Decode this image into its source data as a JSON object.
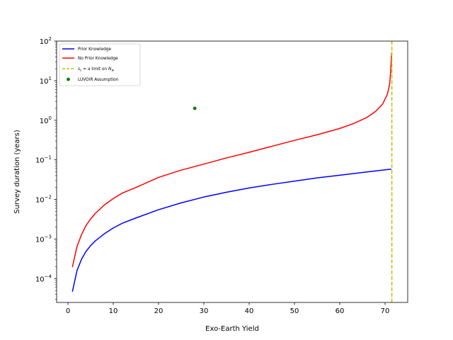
{
  "chart_data": {
    "type": "line",
    "xlabel": "Exo-Earth Yield",
    "ylabel": "Survey duration (years)",
    "xlim": [
      -2.5,
      75
    ],
    "ylim": [
      2.5e-05,
      100
    ],
    "yscale": "log",
    "grid": false,
    "legend_position": "upper-left",
    "x_ticks": [
      0,
      10,
      20,
      30,
      40,
      50,
      60,
      70
    ],
    "y_ticks": [
      0.0001,
      0.001,
      0.01,
      0.1,
      1,
      10,
      100
    ],
    "x_tick_labels": [
      "0",
      "10",
      "20",
      "30",
      "40",
      "50",
      "60",
      "70"
    ],
    "y_tick_labels": [
      {
        "base": "10",
        "exp": "−4"
      },
      {
        "base": "10",
        "exp": "−3"
      },
      {
        "base": "10",
        "exp": "−2"
      },
      {
        "base": "10",
        "exp": "−1"
      },
      {
        "base": "10",
        "exp": "0"
      },
      {
        "base": "10",
        "exp": "1"
      },
      {
        "base": "10",
        "exp": "2"
      }
    ],
    "series": [
      {
        "name": "Prior Knowledge",
        "style": "line",
        "color": "#0000ff",
        "x": [
          1,
          2,
          3,
          4,
          5,
          6,
          8,
          10,
          12,
          15,
          20,
          25,
          30,
          35,
          40,
          45,
          50,
          55,
          60,
          65,
          70,
          71.3
        ],
        "y": [
          4.8e-05,
          0.00016,
          0.00031,
          0.00049,
          0.00068,
          0.00089,
          0.00135,
          0.0019,
          0.0025,
          0.0034,
          0.0055,
          0.0082,
          0.0115,
          0.0152,
          0.0195,
          0.024,
          0.029,
          0.035,
          0.041,
          0.048,
          0.056,
          0.058
        ]
      },
      {
        "name": "No Prior Knowledge",
        "style": "line",
        "color": "#ff0000",
        "x": [
          1,
          2,
          3,
          4,
          5,
          6,
          8,
          10,
          12,
          15,
          20,
          25,
          30,
          35,
          40,
          45,
          50,
          55,
          60,
          63,
          66,
          68,
          69.5,
          70.5,
          71,
          71.2,
          71.35,
          71.45
        ],
        "y": [
          0.0002,
          0.00065,
          0.0013,
          0.0022,
          0.0032,
          0.0044,
          0.0072,
          0.0105,
          0.0145,
          0.02,
          0.036,
          0.055,
          0.078,
          0.112,
          0.155,
          0.22,
          0.31,
          0.43,
          0.62,
          0.82,
          1.18,
          1.7,
          2.6,
          4.5,
          8,
          15,
          30,
          50
        ]
      },
      {
        "name": "$s_c = a$ limit on $N_\\oplus$",
        "style": "vline",
        "color": "#bfbf00",
        "x_value": 71.5
      },
      {
        "name": "LUVOIR Assumption",
        "style": "point",
        "color": "#008000",
        "x": [
          28
        ],
        "y": [
          2
        ]
      }
    ],
    "legend": [
      {
        "label": "Prior Knowledge"
      },
      {
        "label": "No Prior Knowledge"
      },
      {
        "label_parts": {
          "s": "s",
          "c": "c",
          "eq": " = ",
          "a": "a",
          "mid": " limit on ",
          "N": "N",
          "oplus": "⊕"
        }
      },
      {
        "label": "LUVOIR Assumption"
      }
    ]
  }
}
